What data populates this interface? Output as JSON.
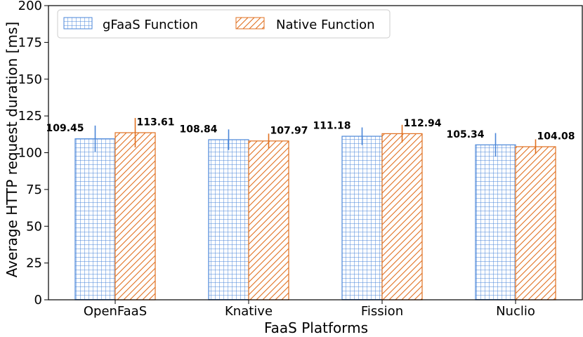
{
  "chart_data": {
    "type": "bar",
    "categories": [
      "OpenFaaS",
      "Knative",
      "Fission",
      "Nuclio"
    ],
    "series": [
      {
        "name": "gFaaS Function",
        "values": [
          109.45,
          108.84,
          111.18,
          105.34
        ],
        "error": [
          9,
          7,
          6,
          8
        ],
        "color": "#4a86d8",
        "pattern": "grid"
      },
      {
        "name": "Native Function",
        "values": [
          113.61,
          107.97,
          112.94,
          104.08
        ],
        "error": [
          10,
          5,
          6,
          5
        ],
        "color": "#e07020",
        "pattern": "diagonal"
      }
    ],
    "value_labels": [
      [
        "109.45",
        "108.84",
        "111.18",
        "105.34"
      ],
      [
        "113.61",
        "107.97",
        "112.94",
        "104.08"
      ]
    ],
    "xlabel": "FaaS Platforms",
    "ylabel": "Average HTTP request duration [ms]",
    "ylim": [
      0,
      200
    ],
    "yticks": [
      "0",
      "25",
      "50",
      "75",
      "100",
      "125",
      "150",
      "175",
      "200"
    ],
    "legend_position": "top-left",
    "grid": false
  }
}
